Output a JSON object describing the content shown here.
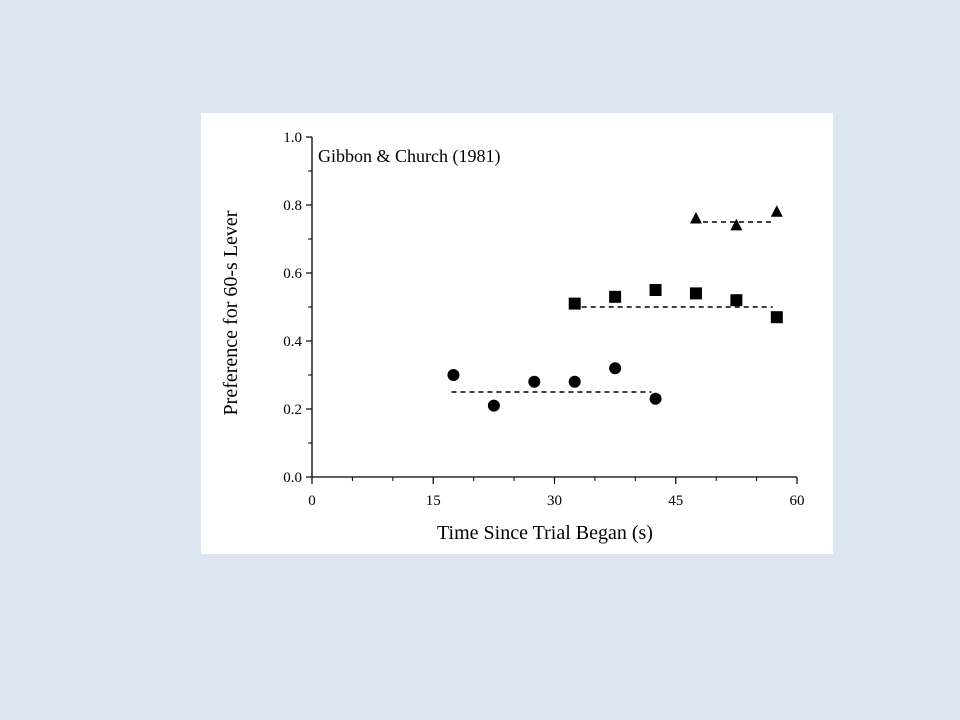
{
  "chart_data": {
    "type": "scatter",
    "title": "",
    "annotation": "Gibbon & Church (1981)",
    "xlabel": "Time Since Trial Began (s)",
    "ylabel": "Preference for 60-s Lever",
    "xlim": [
      0,
      60
    ],
    "ylim": [
      0,
      1.0
    ],
    "x_ticks": [
      0,
      15,
      30,
      45,
      60
    ],
    "x_tick_labels": [
      "0",
      "15",
      "30",
      "45",
      "60"
    ],
    "y_ticks": [
      0,
      0.2,
      0.4,
      0.6,
      0.8,
      1.0
    ],
    "y_tick_labels": [
      "0.0",
      "0.2",
      "0.4",
      "0.6",
      "0.8",
      "1.0"
    ],
    "grid": false,
    "legend": "none",
    "series": [
      {
        "marker": "circle",
        "x": [
          17.5,
          22.5,
          27.5,
          32.5,
          37.5,
          42.5
        ],
        "y": [
          0.3,
          0.21,
          0.28,
          0.28,
          0.32,
          0.23
        ],
        "mean_line": {
          "y": 0.25,
          "x_range": [
            17.5,
            42.5
          ]
        }
      },
      {
        "marker": "square",
        "x": [
          32.5,
          37.5,
          42.5,
          47.5,
          52.5,
          57.5
        ],
        "y": [
          0.51,
          0.53,
          0.55,
          0.54,
          0.52,
          0.47
        ],
        "mean_line": {
          "y": 0.5,
          "x_range": [
            32.5,
            57.5
          ]
        }
      },
      {
        "marker": "triangle",
        "x": [
          47.5,
          52.5,
          57.5
        ],
        "y": [
          0.76,
          0.74,
          0.78
        ],
        "mean_line": {
          "y": 0.75,
          "x_range": [
            47.5,
            57.5
          ]
        }
      }
    ],
    "colors": {
      "background": "#dce6f1",
      "panel": "#ffffff",
      "ink": "#000000"
    }
  }
}
